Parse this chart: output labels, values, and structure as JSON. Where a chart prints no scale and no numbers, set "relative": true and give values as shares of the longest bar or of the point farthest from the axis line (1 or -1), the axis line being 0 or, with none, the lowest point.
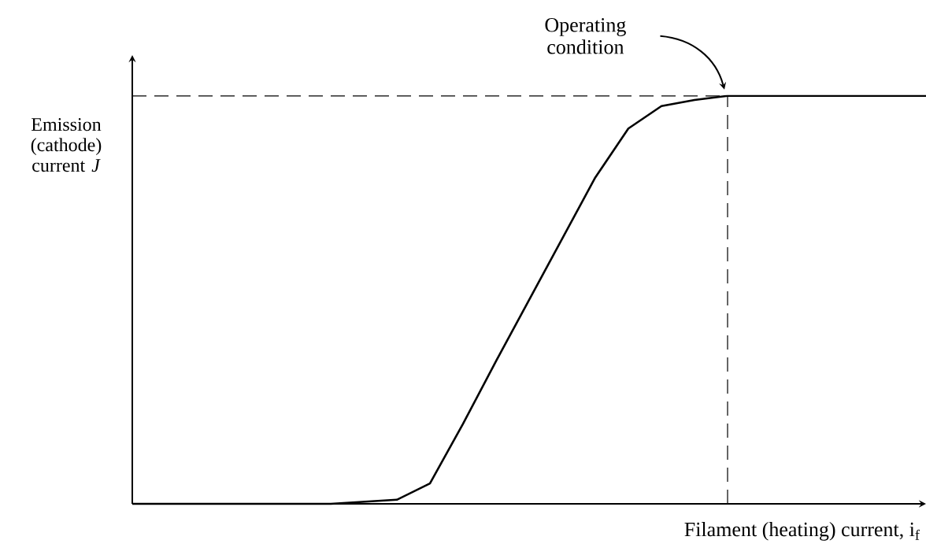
{
  "chart_data": {
    "type": "line",
    "relative": true,
    "xlabel": "Filament (heating) current, i$_{f}$",
    "ylabel": "Emission (cathode) current *J*",
    "categories": [
      null,
      null,
      null,
      null,
      null,
      null,
      null,
      null,
      null,
      null,
      null,
      null,
      null,
      null,
      null,
      null,
      null,
      null,
      null,
      null,
      null,
      null,
      null,
      null,
      null
    ],
    "series": [
      {
        "color": "#000000",
        "values": [
          0,
          0,
          0,
          0,
          0,
          0,
          0,
          0.005,
          0.01,
          0.05,
          0.196,
          0.35,
          0.5,
          0.65,
          0.8,
          0.92,
          0.975,
          0.99,
          1,
          1,
          1,
          1,
          1,
          1,
          1
        ]
      }
    ],
    "ref_lines": [
      {
        "axis": "y",
        "value": 1,
        "line_style": "dashed"
      }
    ],
    "annotations": [
      {
        "text": "Operating condition",
        "y": 1
      }
    ]
  }
}
